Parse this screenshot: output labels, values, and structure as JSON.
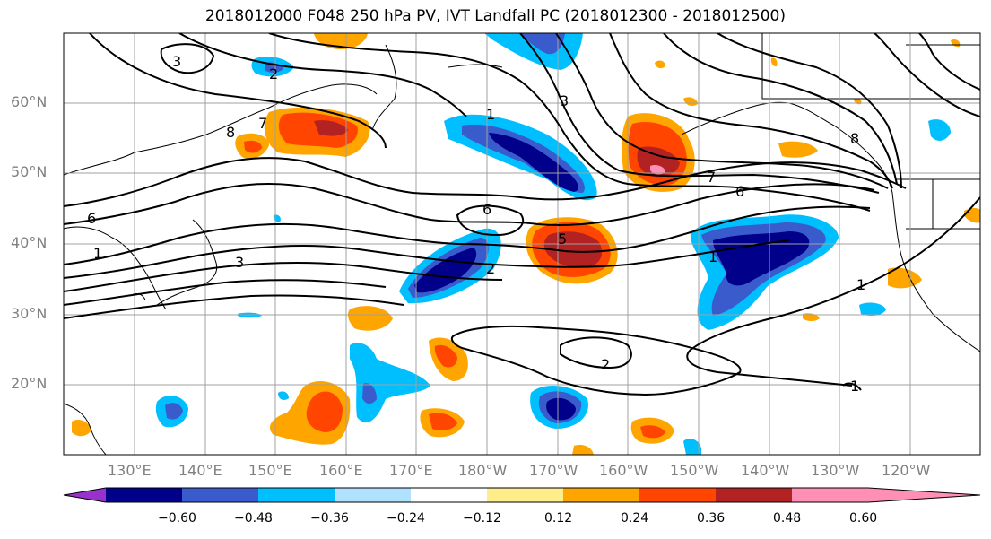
{
  "title": "2018012000 F048 250 hPa PV, IVT Landfall PC (2018012300 - 2018012500)",
  "lat_labels": [
    "60°N",
    "50°N",
    "40°N",
    "30°N",
    "20°N"
  ],
  "lon_labels": [
    "130°E",
    "140°E",
    "150°E",
    "160°E",
    "170°E",
    "180°W",
    "170°W",
    "160°W",
    "150°W",
    "140°W",
    "130°W",
    "120°W"
  ],
  "contour_labels": [
    "3",
    "2",
    "7",
    "8",
    "1",
    "3",
    "6",
    "6",
    "7",
    "6",
    "5",
    "1",
    "2",
    "1",
    "3",
    "2",
    "1",
    "8",
    "1"
  ],
  "colorbar": {
    "colors": [
      "#9932cc",
      "#00008b",
      "#3a5bcc",
      "#00bfff",
      "#b0e2ff",
      "#ffffff",
      "#ffed8a",
      "#ffa500",
      "#ff4500",
      "#b22222",
      "#ff8fb4"
    ],
    "ticks": [
      "−0.60",
      "−0.48",
      "−0.36",
      "−0.24",
      "−0.12",
      "0.12",
      "0.24",
      "0.36",
      "0.48",
      "0.60"
    ]
  }
}
